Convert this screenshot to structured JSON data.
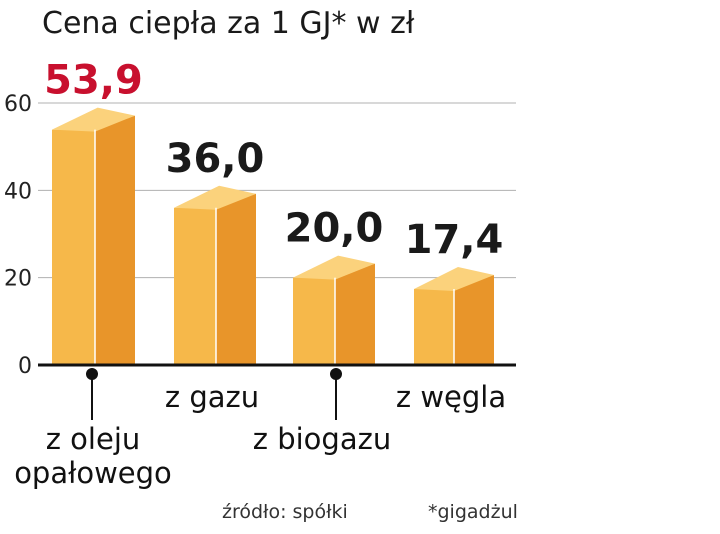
{
  "chart_data": {
    "type": "bar",
    "title": "Cena ciepła za 1 GJ* w zł",
    "categories": [
      "z oleju opałowego",
      "z gazu",
      "z biogazu",
      "z węgla"
    ],
    "category_lines": [
      [
        "z oleju",
        "opałowego"
      ],
      [
        "z gazu"
      ],
      [
        "z biogazu"
      ],
      [
        "z węgla"
      ]
    ],
    "values": [
      53.9,
      36.0,
      20.0,
      17.4
    ],
    "value_labels": [
      "53,9",
      "36,0",
      "20,0",
      "17,4"
    ],
    "yticks": [
      0,
      20,
      40,
      60
    ],
    "ylim": [
      0,
      60
    ],
    "grid": true,
    "source": "źródło: spółki",
    "footnote": "*gigadżul",
    "colors": {
      "front": "#f6b84a",
      "side": "#e8952a",
      "top": "#fbd27c",
      "edge": "#ffffff",
      "highlight_label": "#c8102e",
      "label": "#1a1a1a",
      "grid": "#b0b0b0",
      "axis": "#111111"
    }
  }
}
